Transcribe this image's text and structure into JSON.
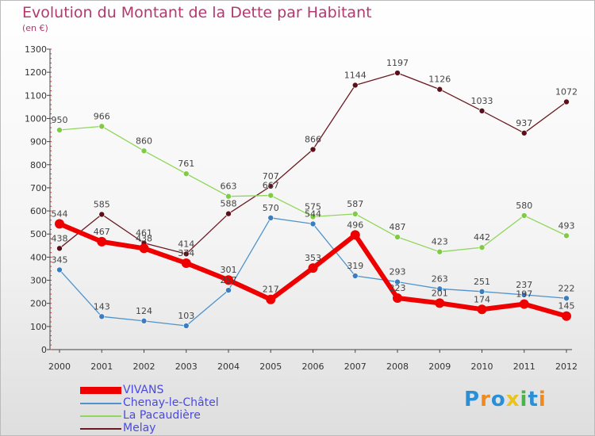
{
  "header": {
    "title": "Evolution du Montant de la Dette par Habitant",
    "subtitle": "(en €)"
  },
  "logo": {
    "text": "Proxiti"
  },
  "chart_data": {
    "type": "line",
    "title": "Evolution du Montant de la Dette par Habitant",
    "subtitle": "(en €)",
    "categories": [
      "2000",
      "2001",
      "2002",
      "2003",
      "2004",
      "2005",
      "2006",
      "2007",
      "2008",
      "2009",
      "2010",
      "2011",
      "2012"
    ],
    "ylim": [
      0,
      1300
    ],
    "yticks": [
      0,
      100,
      200,
      300,
      400,
      500,
      600,
      700,
      800,
      900,
      1000,
      1100,
      1200,
      1300
    ],
    "grid": false,
    "legend": "bottom-left",
    "series": [
      {
        "name": "VIVANS",
        "color": "#ee0000",
        "values": [
          544,
          467,
          438,
          374,
          301,
          217,
          353,
          496,
          223,
          201,
          174,
          197,
          145
        ]
      },
      {
        "name": "Chenay-le-Châtel",
        "color": "#4f93cc",
        "values": [
          345,
          143,
          124,
          103,
          257,
          570,
          544,
          319,
          293,
          263,
          251,
          237,
          222
        ]
      },
      {
        "name": "La Pacaudière",
        "color": "#8fd65a",
        "values": [
          950,
          966,
          860,
          761,
          663,
          667,
          575,
          587,
          487,
          423,
          442,
          580,
          493
        ]
      },
      {
        "name": "Melay",
        "color": "#6b1a22",
        "values": [
          438,
          585,
          461,
          414,
          588,
          707,
          866,
          1144,
          1197,
          1126,
          1033,
          937,
          1072
        ]
      }
    ]
  }
}
